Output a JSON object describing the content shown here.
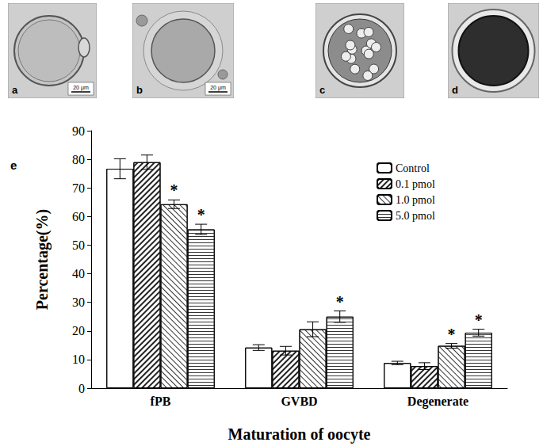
{
  "panels": [
    {
      "label": "a",
      "scale_bar": "20 μm"
    },
    {
      "label": "b",
      "scale_bar": "20 μm"
    },
    {
      "label": "c"
    },
    {
      "label": "d"
    }
  ],
  "chart_data": {
    "type": "bar",
    "title": "e",
    "categories": [
      "fPB",
      "GVBD",
      "Degenerate"
    ],
    "x_label": "Maturation of oocyte",
    "y_label": "Percentage(%)",
    "series": [
      {
        "name": "Control",
        "color": "#ffffff",
        "values": [
          76.7,
          14.2,
          8.8
        ],
        "errors": [
          3.5,
          1.0,
          0.6
        ],
        "significance": [
          null,
          null,
          null
        ]
      },
      {
        "name": "0.1 pmol",
        "color": "#ffffff",
        "values": [
          79.0,
          13.1,
          7.7
        ],
        "errors": [
          2.5,
          1.5,
          1.2
        ],
        "significance": [
          null,
          null,
          null
        ]
      },
      {
        "name": "1.0 pmol",
        "color": "#ffffff",
        "values": [
          64.3,
          20.6,
          14.8
        ],
        "errors": [
          1.5,
          2.6,
          0.8
        ],
        "significance": [
          "*",
          null,
          "*"
        ]
      },
      {
        "name": "5.0 pmol",
        "color": "#ffffff",
        "values": [
          55.5,
          25.0,
          19.4
        ],
        "errors": [
          1.8,
          2.0,
          1.2
        ],
        "significance": [
          "*",
          "*",
          "*"
        ]
      }
    ],
    "ylim": [
      0,
      90
    ],
    "yticks": [
      0,
      10,
      20,
      30,
      40,
      50,
      60,
      70,
      80,
      90
    ],
    "legend": "upper right",
    "grid": false
  }
}
